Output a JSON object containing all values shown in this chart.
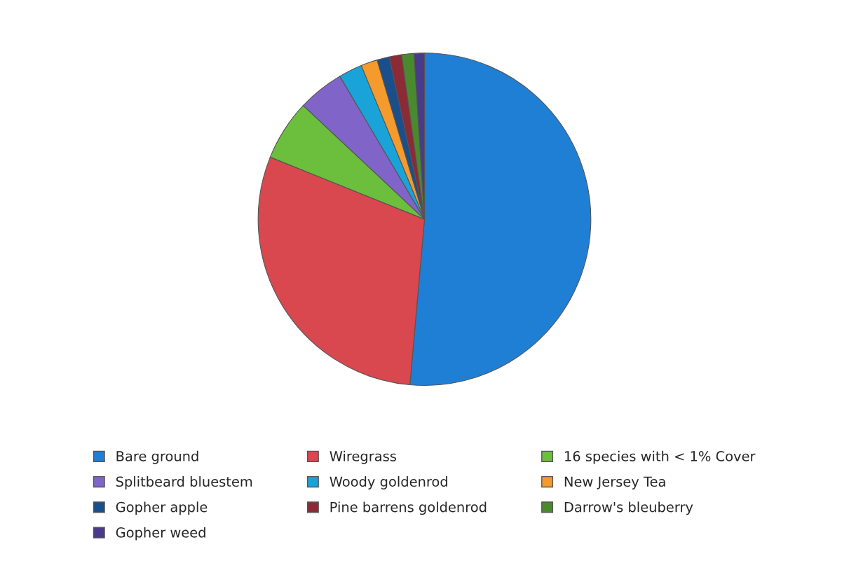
{
  "chart_data": {
    "type": "pie",
    "categories": [
      "Bare ground",
      "Wiregrass",
      "16 species with < 1% Cover",
      "Splitbeard bluestem",
      "Woody goldenrod",
      "New Jersey Tea",
      "Gopher apple",
      "Pine barrens goldenrod",
      "Darrow's bleuberry",
      "Gopher weed"
    ],
    "values": [
      51.4,
      29.7,
      5.9,
      4.5,
      2.3,
      1.6,
      1.2,
      1.2,
      1.2,
      1.0
    ],
    "colors": [
      "#1f7fd4",
      "#d9474f",
      "#6cbf3c",
      "#8064c8",
      "#1aa3d9",
      "#f59a2c",
      "#1a4f8c",
      "#8c2a35",
      "#4a8a2f",
      "#4a3a8a"
    ],
    "legend": "bottom"
  }
}
